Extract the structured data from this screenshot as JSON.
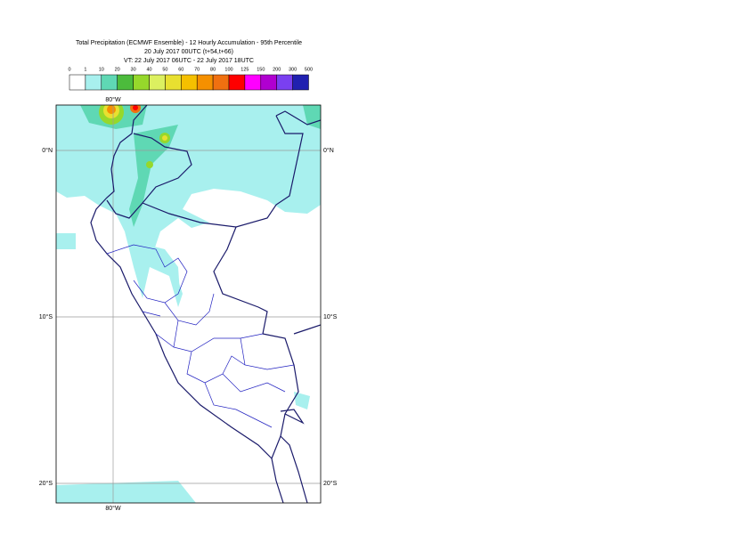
{
  "header": {
    "title_lines": [
      "Total Precipitation (ECMWF Ensemble) - 12 Hourly Accumulation - 95th Percentile",
      "20 July 2017 00UTC (t+54,t+66)",
      "VT: 22 July 2017 06UTC - 22 July 2017 18UTC"
    ]
  },
  "legend": {
    "labels": [
      "0",
      "1",
      "10",
      "20",
      "30",
      "40",
      "50",
      "60",
      "70",
      "80",
      "100",
      "125",
      "150",
      "200",
      "300",
      "500"
    ],
    "colors": [
      "#ffffff",
      "#a8f0ee",
      "#5fd8b4",
      "#4cbb3c",
      "#96d82b",
      "#dcf060",
      "#e8e030",
      "#f5c000",
      "#f59000",
      "#f07010",
      "#ff0000",
      "#ff00ff",
      "#b000d0",
      "#7a40f0",
      "#2020b0",
      "#101050"
    ]
  },
  "map": {
    "lon_labels": [
      "80°W"
    ],
    "lat_labels": [
      "0°N",
      "10°S",
      "20°S"
    ]
  }
}
